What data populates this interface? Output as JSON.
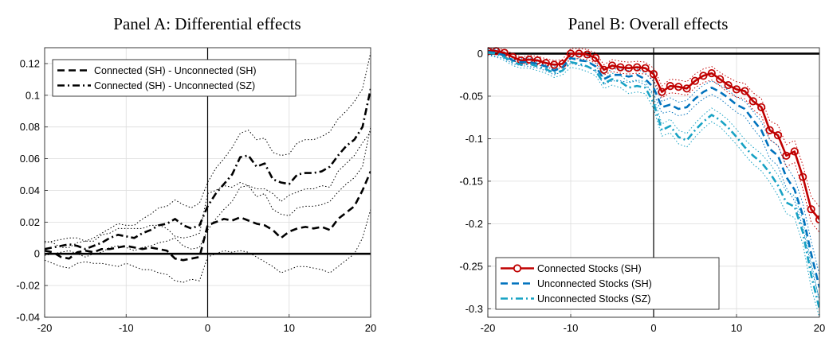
{
  "chart_data": [
    {
      "type": "line",
      "title": "Panel A: Differential effects",
      "xlabel": "",
      "ylabel": "",
      "xlim": [
        -20,
        20
      ],
      "ylim": [
        -0.04,
        0.13
      ],
      "x_ticks": [
        -20,
        -10,
        0,
        10,
        20
      ],
      "x_tick_labels": [
        "-20",
        "-10",
        "0",
        "10",
        "20"
      ],
      "y_ticks": [
        -0.04,
        -0.02,
        0,
        0.02,
        0.04,
        0.06,
        0.08,
        0.1,
        0.12
      ],
      "y_tick_labels": [
        "-0.04",
        "-0.02",
        "0",
        "0.02",
        "0.04",
        "0.06",
        "0.08",
        "0.1",
        "0.12"
      ],
      "grid": true,
      "legend_position": "top-left",
      "reference_lines": {
        "y": 0,
        "x": 0
      },
      "x": [
        -20,
        -19,
        -18,
        -17,
        -16,
        -15,
        -14,
        -13,
        -12,
        -11,
        -10,
        -9,
        -8,
        -7,
        -6,
        -5,
        -4,
        -3,
        -2,
        -1,
        0,
        1,
        2,
        3,
        4,
        5,
        6,
        7,
        8,
        9,
        10,
        11,
        12,
        13,
        14,
        15,
        16,
        17,
        18,
        19,
        20
      ],
      "series": [
        {
          "name": "Connected (SH) - Unconnected (SH)",
          "color": "#000000",
          "style": "dashed",
          "values": [
            0.002,
            0.001,
            -0.002,
            -0.003,
            0.001,
            0.002,
            0.001,
            0.003,
            0.003,
            0.004,
            0.005,
            0.004,
            0.003,
            0.004,
            0.003,
            0.002,
            -0.003,
            -0.004,
            -0.003,
            -0.002,
            0.018,
            0.02,
            0.022,
            0.021,
            0.023,
            0.021,
            0.019,
            0.018,
            0.015,
            0.01,
            0.014,
            0.016,
            0.017,
            0.016,
            0.017,
            0.015,
            0.022,
            0.026,
            0.03,
            0.04,
            0.052
          ],
          "ci_lower": [
            -0.004,
            -0.006,
            -0.008,
            -0.009,
            -0.006,
            -0.005,
            -0.006,
            -0.006,
            -0.007,
            -0.008,
            -0.006,
            -0.008,
            -0.01,
            -0.01,
            -0.012,
            -0.013,
            -0.017,
            -0.018,
            -0.016,
            -0.017,
            -0.002,
            0,
            0.002,
            0.001,
            0.002,
            0.001,
            -0.002,
            -0.005,
            -0.008,
            -0.012,
            -0.01,
            -0.008,
            -0.008,
            -0.009,
            -0.01,
            -0.012,
            -0.008,
            -0.004,
            0,
            0.01,
            0.028
          ],
          "ci_upper": [
            0.008,
            0.007,
            0.004,
            0.004,
            0.007,
            0.008,
            0.008,
            0.012,
            0.013,
            0.016,
            0.016,
            0.016,
            0.016,
            0.018,
            0.018,
            0.016,
            0.011,
            0.01,
            0.011,
            0.013,
            0.038,
            0.04,
            0.043,
            0.042,
            0.045,
            0.043,
            0.041,
            0.041,
            0.038,
            0.033,
            0.037,
            0.039,
            0.041,
            0.041,
            0.043,
            0.042,
            0.052,
            0.057,
            0.062,
            0.07,
            0.077
          ]
        },
        {
          "name": "Connected (SH) - Unconnected (SZ)",
          "color": "#000000",
          "style": "dash-dot",
          "values": [
            0.003,
            0.004,
            0.005,
            0.006,
            0.005,
            0.003,
            0.005,
            0.007,
            0.01,
            0.012,
            0.011,
            0.01,
            0.013,
            0.015,
            0.018,
            0.019,
            0.022,
            0.018,
            0.016,
            0.018,
            0.03,
            0.038,
            0.044,
            0.05,
            0.061,
            0.062,
            0.055,
            0.057,
            0.047,
            0.045,
            0.044,
            0.05,
            0.051,
            0.051,
            0.052,
            0.055,
            0.062,
            0.068,
            0.072,
            0.08,
            0.104
          ],
          "ci_lower": [
            -0.001,
            0,
            0.001,
            0.002,
            0,
            -0.002,
            0,
            0.001,
            0.004,
            0.005,
            0.004,
            0.002,
            0.004,
            0.005,
            0.007,
            0.008,
            0.01,
            0.005,
            0.003,
            0.004,
            0.015,
            0.022,
            0.028,
            0.033,
            0.042,
            0.043,
            0.036,
            0.038,
            0.028,
            0.025,
            0.024,
            0.029,
            0.03,
            0.03,
            0.031,
            0.033,
            0.039,
            0.044,
            0.048,
            0.055,
            0.08
          ],
          "ci_upper": [
            0.007,
            0.008,
            0.009,
            0.01,
            0.01,
            0.008,
            0.01,
            0.013,
            0.016,
            0.019,
            0.018,
            0.018,
            0.022,
            0.025,
            0.029,
            0.03,
            0.034,
            0.031,
            0.029,
            0.032,
            0.045,
            0.054,
            0.06,
            0.067,
            0.076,
            0.078,
            0.072,
            0.073,
            0.064,
            0.062,
            0.063,
            0.07,
            0.072,
            0.072,
            0.074,
            0.077,
            0.085,
            0.09,
            0.096,
            0.104,
            0.127
          ]
        }
      ]
    },
    {
      "type": "line",
      "title": "Panel B: Overall effects",
      "xlabel": "",
      "ylabel": "",
      "xlim": [
        -20,
        20
      ],
      "ylim": [
        -0.31,
        0.007
      ],
      "x_ticks": [
        -20,
        -10,
        0,
        10,
        20
      ],
      "x_tick_labels": [
        "-20",
        "-10",
        "0",
        "10",
        "20"
      ],
      "y_ticks": [
        0,
        -0.05,
        -0.1,
        -0.15,
        -0.2,
        -0.25,
        -0.3
      ],
      "y_tick_labels": [
        "0",
        "-0.05",
        "-0.1",
        "-0.15",
        "-0.2",
        "-0.25",
        "-0.3"
      ],
      "grid": true,
      "legend_position": "bottom-left",
      "reference_lines": {
        "y": 0,
        "x": 0
      },
      "x": [
        -20,
        -19,
        -18,
        -17,
        -16,
        -15,
        -14,
        -13,
        -12,
        -11,
        -10,
        -9,
        -8,
        -7,
        -6,
        -5,
        -4,
        -3,
        -2,
        -1,
        0,
        1,
        2,
        3,
        4,
        5,
        6,
        7,
        8,
        9,
        10,
        11,
        12,
        13,
        14,
        15,
        16,
        17,
        18,
        19,
        20
      ],
      "series": [
        {
          "name": "Connected Stocks (SH)",
          "color": "#c00000",
          "style": "solid-circle",
          "values": [
            0.003,
            0.003,
            0.001,
            -0.004,
            -0.008,
            -0.007,
            -0.008,
            -0.011,
            -0.013,
            -0.012,
            0,
            0,
            -0.001,
            -0.005,
            -0.019,
            -0.014,
            -0.016,
            -0.017,
            -0.016,
            -0.017,
            -0.024,
            -0.045,
            -0.038,
            -0.039,
            -0.041,
            -0.032,
            -0.026,
            -0.023,
            -0.03,
            -0.037,
            -0.042,
            -0.044,
            -0.056,
            -0.063,
            -0.09,
            -0.096,
            -0.12,
            -0.115,
            -0.145,
            -0.183,
            -0.195
          ],
          "ci_lower": [
            0,
            0,
            -0.003,
            -0.008,
            -0.012,
            -0.012,
            -0.013,
            -0.016,
            -0.018,
            -0.017,
            -0.006,
            -0.006,
            -0.007,
            -0.011,
            -0.025,
            -0.021,
            -0.023,
            -0.024,
            -0.023,
            -0.024,
            -0.031,
            -0.052,
            -0.046,
            -0.047,
            -0.049,
            -0.04,
            -0.034,
            -0.031,
            -0.038,
            -0.046,
            -0.051,
            -0.053,
            -0.066,
            -0.073,
            -0.101,
            -0.108,
            -0.133,
            -0.128,
            -0.159,
            -0.198,
            -0.21
          ],
          "ci_upper": [
            0.006,
            0.006,
            0.005,
            0,
            -0.004,
            -0.002,
            -0.003,
            -0.006,
            -0.008,
            -0.007,
            0.006,
            0.006,
            0.005,
            0.001,
            -0.013,
            -0.007,
            -0.009,
            -0.01,
            -0.009,
            -0.01,
            -0.017,
            -0.038,
            -0.03,
            -0.031,
            -0.033,
            -0.024,
            -0.018,
            -0.015,
            -0.022,
            -0.028,
            -0.033,
            -0.035,
            -0.046,
            -0.053,
            -0.079,
            -0.084,
            -0.107,
            -0.102,
            -0.131,
            -0.168,
            -0.18
          ]
        },
        {
          "name": "Unconnected Stocks (SH)",
          "color": "#0072bd",
          "style": "dashed",
          "values": [
            0.002,
            0.001,
            -0.002,
            -0.008,
            -0.01,
            -0.01,
            -0.012,
            -0.015,
            -0.02,
            -0.016,
            -0.005,
            -0.008,
            -0.009,
            -0.015,
            -0.03,
            -0.025,
            -0.025,
            -0.027,
            -0.025,
            -0.03,
            -0.04,
            -0.063,
            -0.06,
            -0.065,
            -0.063,
            -0.053,
            -0.045,
            -0.04,
            -0.045,
            -0.052,
            -0.06,
            -0.065,
            -0.078,
            -0.09,
            -0.112,
            -0.12,
            -0.145,
            -0.16,
            -0.19,
            -0.235,
            -0.275
          ],
          "ci_lower": [
            -0.001,
            -0.003,
            -0.006,
            -0.012,
            -0.014,
            -0.015,
            -0.017,
            -0.02,
            -0.025,
            -0.021,
            -0.011,
            -0.014,
            -0.015,
            -0.021,
            -0.036,
            -0.032,
            -0.032,
            -0.034,
            -0.032,
            -0.037,
            -0.047,
            -0.07,
            -0.068,
            -0.073,
            -0.071,
            -0.061,
            -0.053,
            -0.048,
            -0.053,
            -0.061,
            -0.069,
            -0.074,
            -0.088,
            -0.1,
            -0.123,
            -0.132,
            -0.158,
            -0.173,
            -0.204,
            -0.25,
            -0.29
          ],
          "ci_upper": [
            0.005,
            0.005,
            0.002,
            -0.004,
            -0.006,
            -0.005,
            -0.007,
            -0.01,
            -0.015,
            -0.011,
            0.001,
            -0.002,
            -0.003,
            -0.009,
            -0.024,
            -0.018,
            -0.018,
            -0.02,
            -0.018,
            -0.023,
            -0.033,
            -0.056,
            -0.052,
            -0.057,
            -0.055,
            -0.045,
            -0.037,
            -0.032,
            -0.037,
            -0.043,
            -0.051,
            -0.056,
            -0.068,
            -0.08,
            -0.101,
            -0.108,
            -0.132,
            -0.147,
            -0.176,
            -0.22,
            -0.26
          ]
        },
        {
          "name": "Unconnected Stocks (SZ)",
          "color": "#17a2c4",
          "style": "dash-dot",
          "values": [
            0.001,
            0,
            -0.004,
            -0.01,
            -0.013,
            -0.012,
            -0.015,
            -0.018,
            -0.023,
            -0.02,
            -0.01,
            -0.012,
            -0.015,
            -0.02,
            -0.035,
            -0.03,
            -0.033,
            -0.04,
            -0.038,
            -0.04,
            -0.058,
            -0.09,
            -0.085,
            -0.098,
            -0.102,
            -0.09,
            -0.08,
            -0.072,
            -0.078,
            -0.087,
            -0.098,
            -0.11,
            -0.12,
            -0.128,
            -0.14,
            -0.155,
            -0.175,
            -0.18,
            -0.21,
            -0.26,
            -0.3
          ],
          "ci_lower": [
            -0.002,
            -0.004,
            -0.008,
            -0.014,
            -0.017,
            -0.017,
            -0.02,
            -0.023,
            -0.028,
            -0.025,
            -0.016,
            -0.018,
            -0.021,
            -0.026,
            -0.041,
            -0.037,
            -0.04,
            -0.047,
            -0.045,
            -0.047,
            -0.065,
            -0.097,
            -0.093,
            -0.106,
            -0.11,
            -0.098,
            -0.088,
            -0.08,
            -0.086,
            -0.096,
            -0.107,
            -0.119,
            -0.13,
            -0.138,
            -0.151,
            -0.167,
            -0.188,
            -0.193,
            -0.224,
            -0.275,
            -0.31
          ],
          "ci_upper": [
            0.004,
            0.004,
            0,
            -0.006,
            -0.009,
            -0.007,
            -0.01,
            -0.013,
            -0.018,
            -0.015,
            -0.004,
            -0.006,
            -0.009,
            -0.014,
            -0.029,
            -0.023,
            -0.026,
            -0.033,
            -0.031,
            -0.033,
            -0.051,
            -0.083,
            -0.077,
            -0.09,
            -0.094,
            -0.082,
            -0.072,
            -0.064,
            -0.07,
            -0.078,
            -0.089,
            -0.101,
            -0.11,
            -0.118,
            -0.129,
            -0.143,
            -0.162,
            -0.167,
            -0.196,
            -0.245,
            -0.29
          ]
        }
      ]
    }
  ]
}
